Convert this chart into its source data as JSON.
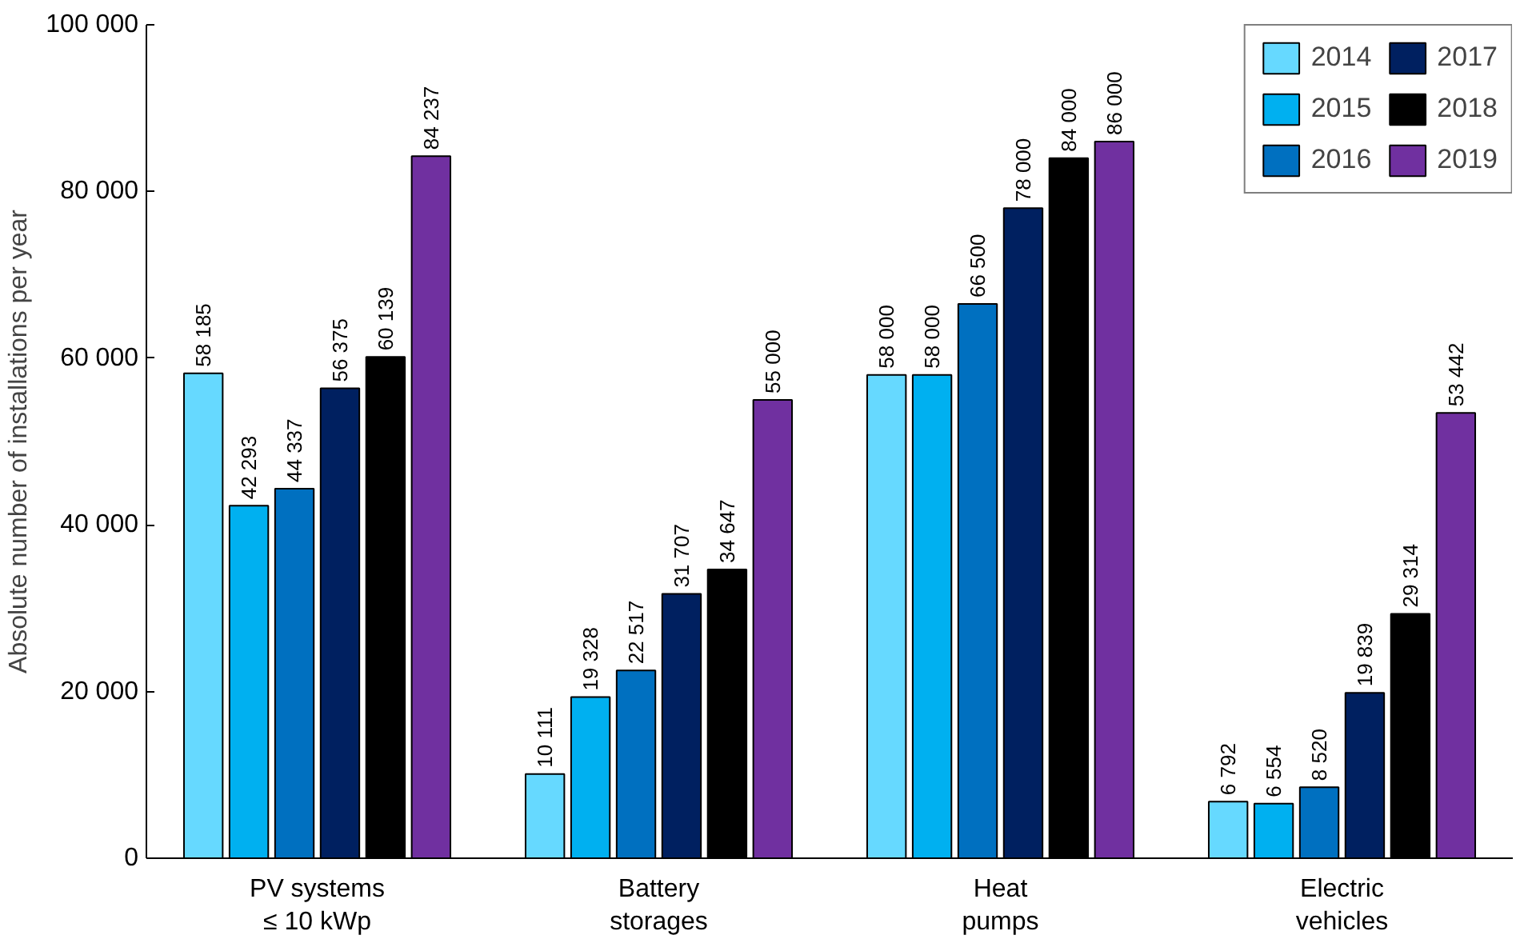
{
  "chart_data": {
    "type": "bar",
    "ylabel": "Absolute number of installations per year",
    "categories": [
      "PV systems\n≤ 10 kWp",
      "Battery\nstorages",
      "Heat\npumps",
      "Electric\nvehicles"
    ],
    "ylim": [
      0,
      100000
    ],
    "yticks": [
      {
        "value": 0,
        "label": "0"
      },
      {
        "value": 20000,
        "label": "20 000"
      },
      {
        "value": 40000,
        "label": "40 000"
      },
      {
        "value": 60000,
        "label": "60 000"
      },
      {
        "value": 80000,
        "label": "80 000"
      },
      {
        "value": 100000,
        "label": "100 000"
      }
    ],
    "grid": false,
    "legend": "top right",
    "series": [
      {
        "name": "2014",
        "color": "#66d9ff",
        "values": [
          58185,
          10111,
          58000,
          6792
        ],
        "value_labels": [
          "58 185",
          "10 111",
          "58 000",
          "6 792"
        ]
      },
      {
        "name": "2015",
        "color": "#00b0f0",
        "values": [
          42293,
          19328,
          58000,
          6554
        ],
        "value_labels": [
          "42 293",
          "19 328",
          "58 000",
          "6 554"
        ]
      },
      {
        "name": "2016",
        "color": "#0070c0",
        "values": [
          44337,
          22517,
          66500,
          8520
        ],
        "value_labels": [
          "44 337",
          "22 517",
          "66 500",
          "8 520"
        ]
      },
      {
        "name": "2017",
        "color": "#002060",
        "values": [
          56375,
          31707,
          78000,
          19839
        ],
        "value_labels": [
          "56 375",
          "31 707",
          "78 000",
          "19 839"
        ]
      },
      {
        "name": "2018",
        "color": "#000000",
        "values": [
          60139,
          34647,
          84000,
          29314
        ],
        "value_labels": [
          "60 139",
          "34 647",
          "84 000",
          "29 314"
        ]
      },
      {
        "name": "2019",
        "color": "#7030a0",
        "values": [
          84237,
          55000,
          86000,
          53442
        ],
        "value_labels": [
          "84 237",
          "55 000",
          "86 000",
          "53 442"
        ]
      }
    ]
  }
}
